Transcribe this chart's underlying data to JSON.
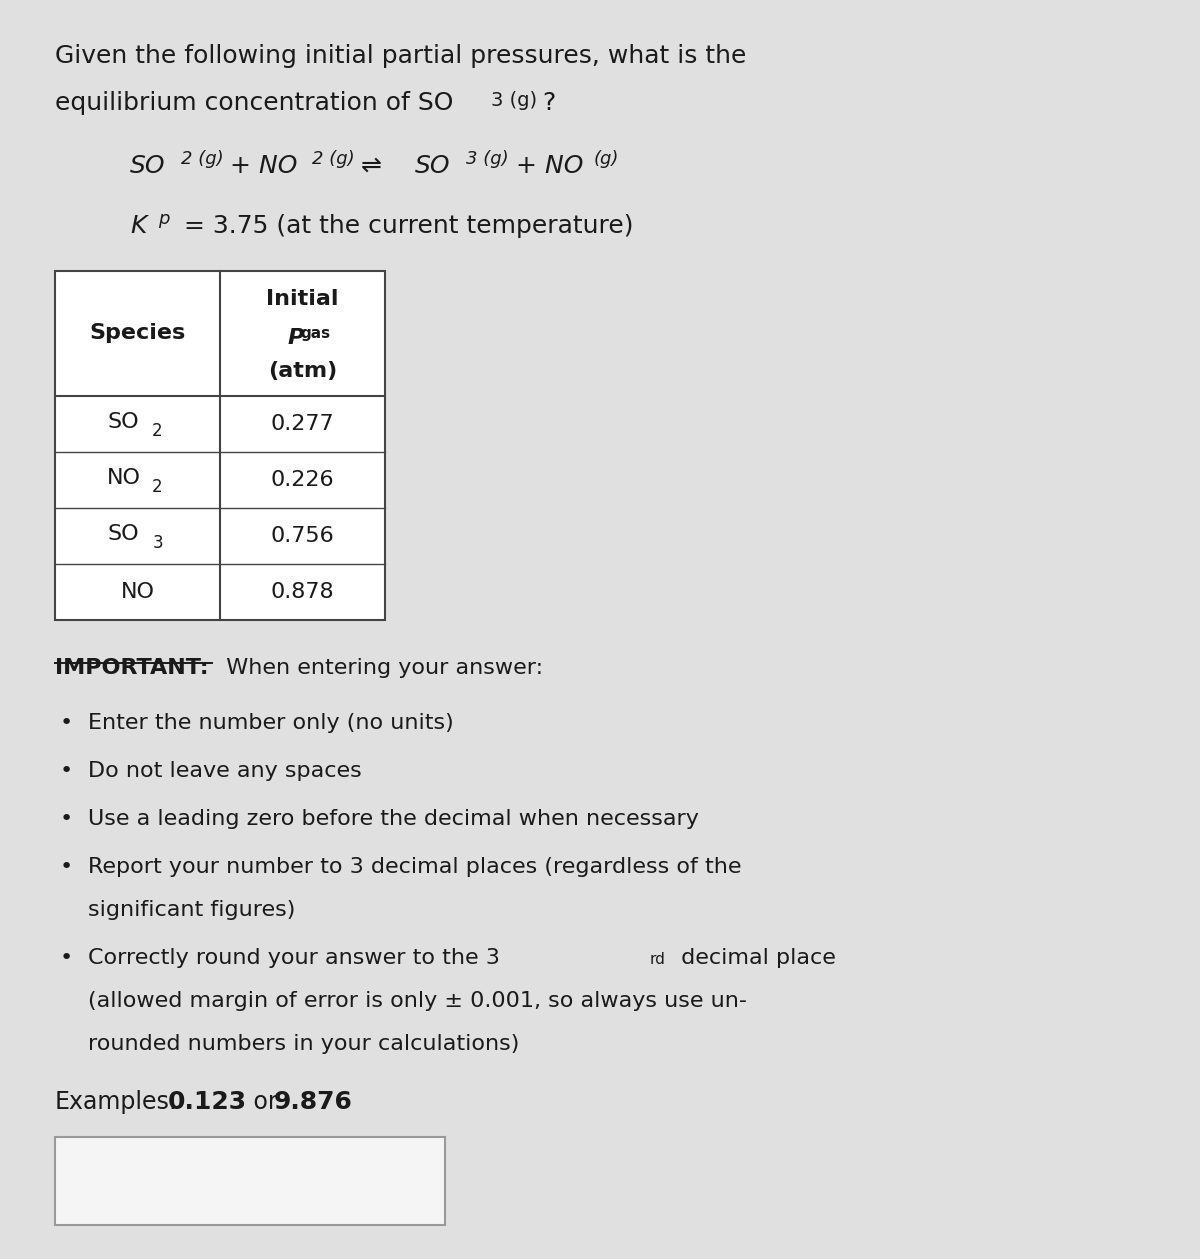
{
  "bg_color": "#c8c8c8",
  "panel_color": "#e0e0e0",
  "title_line1": "Given the following initial partial pressures, what is the",
  "title_line2_main": "equilibrium concentration of SO",
  "title_line2_sub": "3 (g)",
  "title_line2_end": "?",
  "table_header_col1": "Species",
  "table_header_col2_line1": "Initial",
  "table_header_col2_line2_main": "P",
  "table_header_col2_line2_sub": "gas",
  "table_header_col2_line3": "(atm)",
  "species": [
    "SO2",
    "NO2",
    "SO3",
    "NO"
  ],
  "pressures": [
    "0.277",
    "0.226",
    "0.756",
    "0.878"
  ],
  "important_label": "IMPORTANT:",
  "important_rest": "  When entering your answer:",
  "bullet1": "Enter the number only (no units)",
  "bullet2": "Do not leave any spaces",
  "bullet3": "Use a leading zero before the decimal when necessary",
  "bullet4a": "Report your number to 3 decimal places (regardless of the",
  "bullet4b": "significant figures)",
  "bullet5a": "Correctly round your answer to the 3",
  "bullet5a_sup": "rd",
  "bullet5a_end": " decimal place",
  "bullet5b": "(allowed margin of error is only ± 0.001, so always use un-",
  "bullet5c": "rounded numbers in your calculations)",
  "examples_label": "Examples:",
  "examples_val1": "0.123",
  "examples_or": " or ",
  "examples_val2": "9.876",
  "input_box_color": "#f5f5f5",
  "text_color": "#1a1a1a",
  "table_border_color": "#444444",
  "font_size_title": 18,
  "font_size_body": 16,
  "font_size_table": 16,
  "font_size_examples": 17
}
